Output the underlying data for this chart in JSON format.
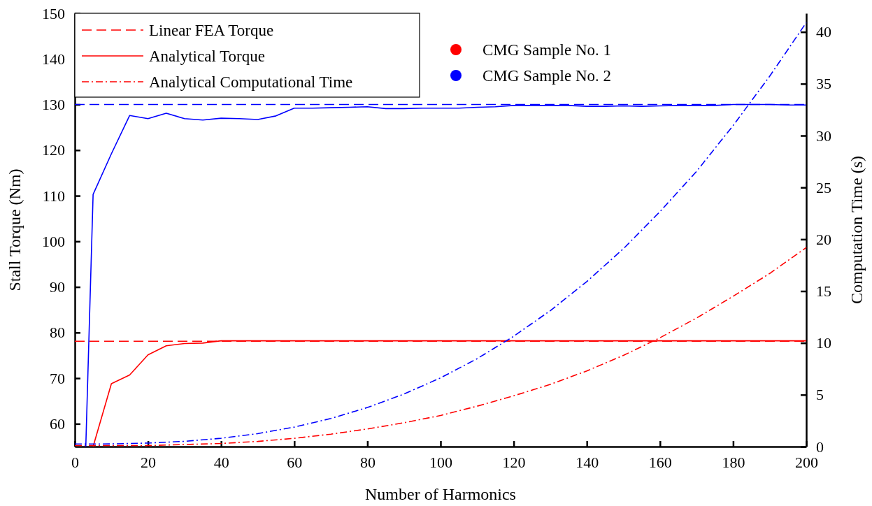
{
  "chart_data": {
    "type": "line",
    "xlabel": "Number of Harmonics",
    "ylabel": "Stall Torque (Nm)",
    "y2label": "Computation Time (s)",
    "xlim": [
      0,
      200
    ],
    "xticks": [
      0,
      20,
      40,
      60,
      80,
      100,
      120,
      140,
      160,
      180,
      200
    ],
    "ylim": [
      55,
      150
    ],
    "yticks": [
      60,
      70,
      80,
      90,
      100,
      110,
      120,
      130,
      140,
      150
    ],
    "y2lim": [
      0,
      41.8
    ],
    "y2ticks": [
      0,
      5,
      10,
      15,
      20,
      25,
      30,
      35,
      40
    ],
    "legend": "top left",
    "grid": false,
    "annotations": [
      "CMG Sample No. 1",
      "CMG Sample No. 2"
    ],
    "series": [
      {
        "name": "Linear FEA Torque",
        "color": "#ff0000",
        "line_style": "dashed",
        "x": [
          0,
          200
        ],
        "values": [
          78.1,
          78.1
        ]
      },
      {
        "name": "Analytical Torque",
        "color": "#ff0000",
        "line_style": "solid",
        "x": [
          5,
          10,
          15,
          20,
          25,
          30,
          35,
          40,
          45,
          50,
          55,
          60,
          65,
          70,
          75,
          80,
          85,
          90,
          95,
          100,
          105,
          110,
          115,
          120,
          125,
          130,
          135,
          140,
          145,
          150,
          155,
          160,
          165,
          170,
          175,
          180,
          185,
          190,
          195,
          200
        ],
        "values": [
          55,
          68.8,
          70.7,
          75.1,
          77.1,
          77.6,
          77.7,
          78.2,
          78.2,
          78.2,
          78.2,
          78.2,
          78.2,
          78.2,
          78.2,
          78.2,
          78.2,
          78.2,
          78.2,
          78.2,
          78.2,
          78.2,
          78.2,
          78.2,
          78.2,
          78.2,
          78.2,
          78.2,
          78.2,
          78.2,
          78.2,
          78.2,
          78.2,
          78.2,
          78.2,
          78.2,
          78.2,
          78.2,
          78.2,
          78.2
        ]
      },
      {
        "name": "Analytical Computational Time",
        "color": "#ff0000",
        "line_style": "dotted",
        "axis": "y2",
        "x": [
          0,
          10,
          20,
          30,
          40,
          50,
          60,
          70,
          80,
          90,
          100,
          110,
          120,
          130,
          140,
          150,
          160,
          170,
          180,
          190,
          200
        ],
        "values": [
          0.1,
          0.1,
          0.1,
          0.2,
          0.3,
          0.5,
          0.8,
          1.2,
          1.7,
          2.3,
          3.0,
          3.9,
          4.9,
          6.0,
          7.3,
          8.8,
          10.5,
          12.4,
          14.5,
          16.7,
          19.2
        ]
      },
      {
        "color": "#0000ff",
        "line_style": "dashed",
        "x": [
          0,
          200
        ],
        "values": [
          130,
          130
        ]
      },
      {
        "color": "#0000ff",
        "line_style": "solid",
        "x": [
          3,
          5,
          10,
          15,
          20,
          25,
          30,
          35,
          40,
          45,
          50,
          55,
          60,
          65,
          70,
          75,
          80,
          85,
          90,
          95,
          100,
          105,
          110,
          115,
          120,
          125,
          130,
          135,
          140,
          145,
          150,
          155,
          160,
          165,
          170,
          175,
          180,
          185,
          190,
          195,
          200
        ],
        "values": [
          55,
          110.3,
          119.2,
          127.6,
          126.9,
          128.1,
          126.9,
          126.6,
          127,
          126.9,
          126.7,
          127.5,
          129.2,
          129.2,
          129.3,
          129.4,
          129.5,
          129.1,
          129.1,
          129.2,
          129.2,
          129.2,
          129.4,
          129.5,
          129.8,
          129.8,
          129.8,
          129.8,
          129.6,
          129.6,
          129.7,
          129.6,
          129.7,
          129.8,
          129.8,
          129.8,
          130,
          130,
          130,
          129.9,
          129.9
        ]
      },
      {
        "color": "#0000ff",
        "line_style": "dotted",
        "axis": "y2",
        "x": [
          0,
          10,
          20,
          30,
          40,
          50,
          60,
          70,
          80,
          90,
          100,
          110,
          120,
          130,
          140,
          150,
          160,
          170,
          180,
          190,
          200
        ],
        "values": [
          0.25,
          0.26,
          0.34,
          0.51,
          0.8,
          1.25,
          1.88,
          2.71,
          3.77,
          5.07,
          6.63,
          8.48,
          10.64,
          13.11,
          15.92,
          19.09,
          22.67,
          26.55,
          30.97,
          35.73,
          40.9
        ]
      }
    ]
  }
}
